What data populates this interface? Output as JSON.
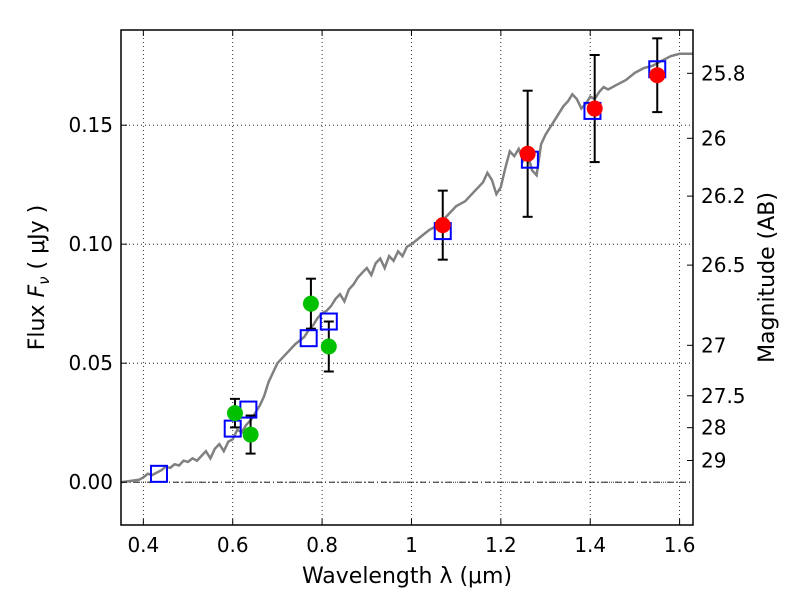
{
  "chart_data": {
    "type": "scatter",
    "xlabel": "Wavelength  λ (μm)",
    "ylabel_main": "Flux  ",
    "ylabel_sym": "F",
    "ylabel_sub": "ν",
    "ylabel_unit": "  ( μJy )",
    "y2label": "Magnitude (AB)",
    "xlim": [
      0.35,
      1.63
    ],
    "ylim": [
      -0.018,
      0.19
    ],
    "xticks": [
      0.4,
      0.6,
      0.8,
      1.0,
      1.2,
      1.4,
      1.6
    ],
    "xtick_labels": [
      "0.4",
      "0.6",
      "0.8",
      "1",
      "1.2",
      "1.4",
      "1.6"
    ],
    "yticks": [
      0.0,
      0.05,
      0.1,
      0.15
    ],
    "ytick_labels": [
      "0.00",
      "0.05",
      "0.10",
      "0.15"
    ],
    "mag_ticks": [
      {
        "label": "25.8",
        "flux": 0.1718
      },
      {
        "label": "26",
        "flux": 0.1445
      },
      {
        "label": "26.2",
        "flux": 0.1202
      },
      {
        "label": "26.5",
        "flux": 0.0912
      },
      {
        "label": "27",
        "flux": 0.0575
      },
      {
        "label": "27.5",
        "flux": 0.0363
      },
      {
        "label": "28",
        "flux": 0.0229
      },
      {
        "label": "29",
        "flux": 0.0091
      }
    ],
    "grid": true,
    "model_spectrum": {
      "color": "#808080",
      "x": [
        0.35,
        0.37,
        0.39,
        0.4,
        0.41,
        0.42,
        0.43,
        0.44,
        0.45,
        0.46,
        0.47,
        0.48,
        0.49,
        0.5,
        0.51,
        0.52,
        0.53,
        0.54,
        0.55,
        0.56,
        0.57,
        0.58,
        0.59,
        0.6,
        0.61,
        0.62,
        0.63,
        0.64,
        0.65,
        0.66,
        0.67,
        0.68,
        0.7,
        0.72,
        0.74,
        0.76,
        0.77,
        0.78,
        0.79,
        0.8,
        0.81,
        0.82,
        0.83,
        0.84,
        0.85,
        0.86,
        0.87,
        0.88,
        0.89,
        0.9,
        0.91,
        0.92,
        0.93,
        0.94,
        0.95,
        0.96,
        0.97,
        0.98,
        0.99,
        1.0,
        1.02,
        1.04,
        1.06,
        1.08,
        1.1,
        1.12,
        1.14,
        1.16,
        1.17,
        1.18,
        1.19,
        1.2,
        1.21,
        1.22,
        1.23,
        1.24,
        1.25,
        1.26,
        1.27,
        1.28,
        1.29,
        1.3,
        1.32,
        1.34,
        1.35,
        1.36,
        1.37,
        1.38,
        1.39,
        1.4,
        1.41,
        1.42,
        1.43,
        1.44,
        1.46,
        1.48,
        1.5,
        1.52,
        1.54,
        1.56,
        1.58,
        1.6,
        1.63
      ],
      "y": [
        0.0,
        0.0005,
        0.001,
        0.002,
        0.0035,
        0.003,
        0.004,
        0.005,
        0.0065,
        0.006,
        0.0075,
        0.007,
        0.009,
        0.0085,
        0.01,
        0.009,
        0.011,
        0.013,
        0.01,
        0.014,
        0.016,
        0.013,
        0.017,
        0.018,
        0.022,
        0.021,
        0.024,
        0.026,
        0.029,
        0.032,
        0.036,
        0.042,
        0.05,
        0.054,
        0.058,
        0.061,
        0.064,
        0.066,
        0.069,
        0.071,
        0.072,
        0.074,
        0.077,
        0.079,
        0.076,
        0.081,
        0.083,
        0.086,
        0.088,
        0.09,
        0.087,
        0.092,
        0.094,
        0.09,
        0.095,
        0.093,
        0.097,
        0.095,
        0.099,
        0.1,
        0.103,
        0.106,
        0.108,
        0.112,
        0.116,
        0.118,
        0.122,
        0.126,
        0.13,
        0.127,
        0.121,
        0.124,
        0.132,
        0.139,
        0.137,
        0.14,
        0.135,
        0.138,
        0.131,
        0.129,
        0.142,
        0.146,
        0.152,
        0.158,
        0.16,
        0.163,
        0.161,
        0.157,
        0.159,
        0.162,
        0.161,
        0.164,
        0.166,
        0.165,
        0.167,
        0.169,
        0.172,
        0.174,
        0.175,
        0.177,
        0.179,
        0.18,
        0.18
      ]
    },
    "series": [
      {
        "marker": "open-square",
        "color": "#0000ff",
        "x": [
          0.435,
          0.6,
          0.635,
          0.77,
          0.815,
          1.07,
          1.265,
          1.405,
          1.55
        ],
        "y": [
          0.0035,
          0.0225,
          0.0305,
          0.0605,
          0.0675,
          0.1055,
          0.1355,
          0.156,
          0.1735
        ]
      },
      {
        "marker": "filled-circle",
        "color": "#00c000",
        "x": [
          0.605,
          0.64,
          0.775,
          0.815
        ],
        "y": [
          0.029,
          0.02,
          0.075,
          0.057
        ],
        "err": [
          0.006,
          0.008,
          0.0105,
          0.0105
        ]
      },
      {
        "marker": "filled-circle",
        "color": "#ff0000",
        "x": [
          1.07,
          1.26,
          1.41,
          1.55
        ],
        "y": [
          0.108,
          0.138,
          0.157,
          0.171
        ],
        "err": [
          0.0145,
          0.0265,
          0.0225,
          0.0155
        ]
      }
    ],
    "zero_line": {
      "y": 0.0,
      "color": "#000000",
      "style": "dashdot"
    }
  }
}
